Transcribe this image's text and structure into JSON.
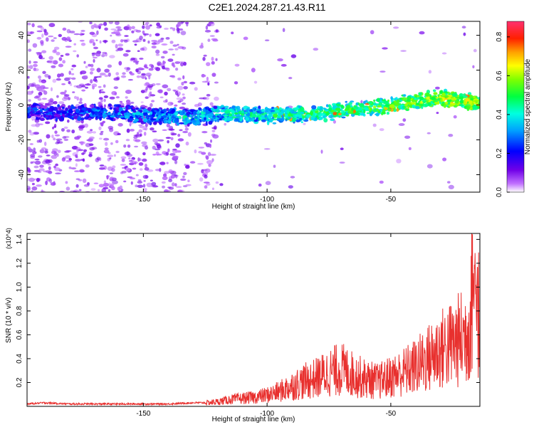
{
  "title": "C2E1.2024.287.21.43.R11",
  "chart_data": [
    {
      "type": "heatmap",
      "xlabel": "Height of straight line (km)",
      "ylabel": "Frequency (Hz)",
      "xlim": [
        -197,
        -14
      ],
      "ylim": [
        -50,
        48
      ],
      "xticks": [
        -150,
        -100,
        -50
      ],
      "yticks": [
        -40,
        -20,
        0,
        20,
        40
      ],
      "colorbar": {
        "label": "Normalized spectral amplitude",
        "range": [
          0,
          0.88
        ],
        "ticks": [
          0.0,
          0.2,
          0.4,
          0.6,
          0.8
        ]
      },
      "ridge": {
        "x": [
          -197,
          -180,
          -165,
          -150,
          -130,
          -120,
          -100,
          -80,
          -70,
          -60,
          -50,
          -40,
          -30,
          -14
        ],
        "y": [
          -3,
          -5,
          -4,
          -6,
          -7,
          -5,
          -6,
          -5,
          -3,
          -2,
          0,
          2,
          4,
          1
        ]
      }
    },
    {
      "type": "line",
      "xlabel": "Height of straight line (km)",
      "ylabel": "SNR (10 * v/v)",
      "y_multiplier": "(x10^4)",
      "xlim": [
        -197,
        -14
      ],
      "ylim": [
        0,
        1.45
      ],
      "xticks": [
        -150,
        -100,
        -50
      ],
      "yticks": [
        0.2,
        0.4,
        0.6,
        0.8,
        1.0,
        1.2,
        1.4
      ],
      "color": "#e8302e",
      "series": [
        {
          "x": [
            -197,
            -190,
            -180,
            -170,
            -160,
            -150,
            -140,
            -130,
            -125,
            -120,
            -115,
            -110,
            -105,
            -100,
            -95,
            -90,
            -85,
            -80,
            -75,
            -70,
            -65,
            -60,
            -55,
            -50,
            -45,
            -40,
            -35,
            -30,
            -25,
            -20,
            -18,
            -16,
            -14
          ],
          "y": [
            0.02,
            0.03,
            0.02,
            0.02,
            0.02,
            0.02,
            0.02,
            0.03,
            0.03,
            0.04,
            0.06,
            0.07,
            0.08,
            0.1,
            0.13,
            0.18,
            0.22,
            0.25,
            0.3,
            0.33,
            0.28,
            0.24,
            0.22,
            0.26,
            0.3,
            0.35,
            0.42,
            0.5,
            0.55,
            0.62,
            0.75,
            1.45,
            0.6
          ]
        }
      ]
    }
  ]
}
